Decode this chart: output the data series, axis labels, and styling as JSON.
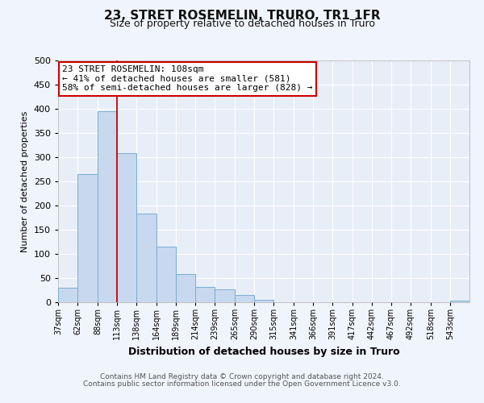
{
  "title": "23, STRET ROSEMELIN, TRURO, TR1 1FR",
  "subtitle": "Size of property relative to detached houses in Truro",
  "xlabel": "Distribution of detached houses by size in Truro",
  "ylabel": "Number of detached properties",
  "bin_labels": [
    "37sqm",
    "62sqm",
    "88sqm",
    "113sqm",
    "138sqm",
    "164sqm",
    "189sqm",
    "214sqm",
    "239sqm",
    "265sqm",
    "290sqm",
    "315sqm",
    "341sqm",
    "366sqm",
    "391sqm",
    "417sqm",
    "442sqm",
    "467sqm",
    "492sqm",
    "518sqm",
    "543sqm"
  ],
  "bar_heights": [
    30,
    265,
    395,
    308,
    183,
    115,
    58,
    32,
    27,
    15,
    5,
    0,
    0,
    0,
    0,
    0,
    0,
    0,
    0,
    0,
    3
  ],
  "bin_edges": [
    37,
    62,
    88,
    113,
    138,
    164,
    189,
    214,
    239,
    265,
    290,
    315,
    341,
    366,
    391,
    417,
    442,
    467,
    492,
    518,
    543,
    568
  ],
  "bar_color": "#c8d8ee",
  "bar_edge_color": "#7aaed0",
  "vline_x": 113,
  "vline_color": "#cc0000",
  "annotation_title": "23 STRET ROSEMELIN: 108sqm",
  "annotation_line1": "← 41% of detached houses are smaller (581)",
  "annotation_line2": "58% of semi-detached houses are larger (828) →",
  "annotation_box_color": "#ffffff",
  "annotation_box_edge": "#cc0000",
  "ylim": [
    0,
    500
  ],
  "yticks": [
    0,
    50,
    100,
    150,
    200,
    250,
    300,
    350,
    400,
    450,
    500
  ],
  "bg_color": "#f0f4fc",
  "axes_bg_color": "#e8eef8",
  "footer1": "Contains HM Land Registry data © Crown copyright and database right 2024.",
  "footer2": "Contains public sector information licensed under the Open Government Licence v3.0."
}
